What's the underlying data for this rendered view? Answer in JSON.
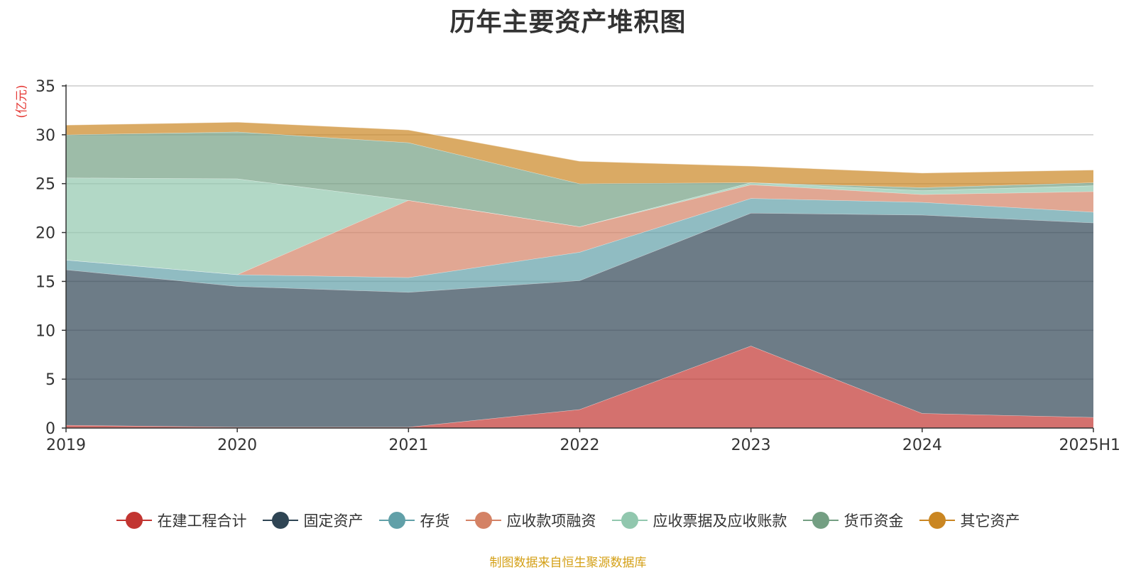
{
  "chart_data": {
    "type": "area",
    "stacked": true,
    "title": "历年主要资产堆积图",
    "ylabel": "(亿元)",
    "xlabel": "",
    "ylim": [
      0,
      35
    ],
    "yticks": [
      0,
      5,
      10,
      15,
      20,
      25,
      30,
      35
    ],
    "categories": [
      "2019",
      "2020",
      "2021",
      "2022",
      "2023",
      "2024",
      "2025H1"
    ],
    "grid": true,
    "legend_position": "bottom",
    "series": [
      {
        "name": "在建工程合计",
        "color": "#c23531",
        "values": [
          0.3,
          0.1,
          0.1,
          1.9,
          8.4,
          1.5,
          1.1
        ]
      },
      {
        "name": "固定资产",
        "color": "#2f4554",
        "values": [
          15.9,
          14.4,
          13.8,
          13.2,
          13.6,
          20.3,
          19.9
        ]
      },
      {
        "name": "存货",
        "color": "#61a0a8",
        "values": [
          1.0,
          1.2,
          1.5,
          2.9,
          1.5,
          1.3,
          1.1
        ]
      },
      {
        "name": "应收款项融资",
        "color": "#d48265",
        "values": [
          0.0,
          0.0,
          7.9,
          2.6,
          1.4,
          0.8,
          2.1
        ]
      },
      {
        "name": "应收票据及应收账款",
        "color": "#91c7ae",
        "values": [
          8.4,
          9.8,
          0.0,
          0.0,
          0.2,
          0.4,
          0.6
        ]
      },
      {
        "name": "货币资金",
        "color": "#749f83",
        "values": [
          4.4,
          4.8,
          5.9,
          4.4,
          0.0,
          0.3,
          0.3
        ]
      },
      {
        "name": "其它资产",
        "color": "#ca8622",
        "values": [
          1.0,
          1.0,
          1.3,
          2.3,
          1.7,
          1.5,
          1.3
        ]
      }
    ],
    "source": "制图数据来自恒生聚源数据库"
  }
}
